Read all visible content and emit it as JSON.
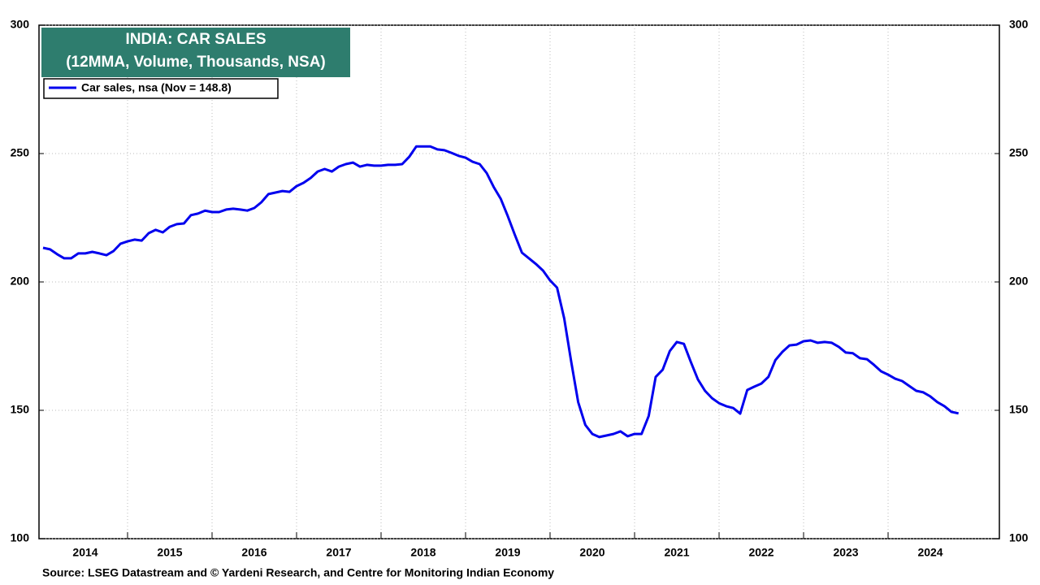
{
  "chart_data": {
    "type": "line",
    "title": "INDIA: CAR SALES",
    "subtitle": "(12MMA, Volume, Thousands, NSA)",
    "source": "Source: LSEG Datastream and © Yardeni Research, and Centre for Monitoring Indian Economy",
    "x": [
      2014.0,
      2014.083,
      2014.167,
      2014.25,
      2014.333,
      2014.417,
      2014.5,
      2014.583,
      2014.667,
      2014.75,
      2014.833,
      2014.917,
      2015.0,
      2015.083,
      2015.167,
      2015.25,
      2015.333,
      2015.417,
      2015.5,
      2015.583,
      2015.667,
      2015.75,
      2015.833,
      2015.917,
      2016.0,
      2016.083,
      2016.167,
      2016.25,
      2016.333,
      2016.417,
      2016.5,
      2016.583,
      2016.667,
      2016.75,
      2016.833,
      2016.917,
      2017.0,
      2017.083,
      2017.167,
      2017.25,
      2017.333,
      2017.417,
      2017.5,
      2017.583,
      2017.667,
      2017.75,
      2017.833,
      2017.917,
      2018.0,
      2018.083,
      2018.167,
      2018.25,
      2018.333,
      2018.417,
      2018.5,
      2018.583,
      2018.667,
      2018.75,
      2018.833,
      2018.917,
      2019.0,
      2019.083,
      2019.167,
      2019.25,
      2019.333,
      2019.417,
      2019.5,
      2019.583,
      2019.667,
      2019.75,
      2019.833,
      2019.917,
      2020.0,
      2020.083,
      2020.167,
      2020.25,
      2020.333,
      2020.417,
      2020.5,
      2020.583,
      2020.667,
      2020.75,
      2020.833,
      2020.917,
      2021.0,
      2021.083,
      2021.167,
      2021.25,
      2021.333,
      2021.417,
      2021.5,
      2021.583,
      2021.667,
      2021.75,
      2021.833,
      2021.917,
      2022.0,
      2022.083,
      2022.167,
      2022.25,
      2022.333,
      2022.417,
      2022.5,
      2022.583,
      2022.667,
      2022.75,
      2022.833,
      2022.917,
      2023.0,
      2023.083,
      2023.167,
      2023.25,
      2023.333,
      2023.417,
      2023.5,
      2023.583,
      2023.667,
      2023.75,
      2023.833,
      2023.917,
      2024.0,
      2024.083,
      2024.167,
      2024.25,
      2024.333,
      2024.417,
      2024.5,
      2024.583,
      2024.667,
      2024.75,
      2024.833
    ],
    "series": [
      {
        "name": "Car sales, nsa (Nov = 148.8)",
        "color": "#0000ee",
        "values": [
          213.3,
          212.7,
          210.8,
          209.2,
          209.2,
          211.1,
          211.1,
          211.7,
          211.1,
          210.4,
          212.0,
          214.9,
          215.8,
          216.5,
          216.1,
          219.0,
          220.3,
          219.3,
          221.5,
          222.5,
          222.8,
          226.0,
          226.6,
          227.8,
          227.2,
          227.2,
          228.2,
          228.5,
          228.2,
          227.8,
          228.8,
          231.0,
          234.2,
          234.8,
          235.4,
          235.1,
          237.3,
          238.6,
          240.5,
          243.0,
          244.0,
          243.0,
          244.9,
          245.9,
          246.5,
          244.9,
          245.6,
          245.3,
          245.3,
          245.6,
          245.6,
          245.9,
          248.7,
          252.8,
          252.8,
          252.8,
          251.6,
          251.3,
          250.3,
          249.1,
          248.4,
          246.8,
          245.9,
          242.4,
          237.0,
          232.3,
          225.6,
          218.4,
          211.4,
          209.2,
          207.0,
          204.4,
          200.6,
          197.8,
          185.8,
          169.0,
          153.2,
          144.3,
          140.8,
          139.6,
          140.2,
          140.8,
          141.8,
          139.9,
          140.8,
          140.8,
          147.8,
          163.0,
          165.8,
          173.1,
          176.6,
          175.9,
          168.7,
          162.0,
          157.6,
          154.7,
          152.8,
          151.6,
          150.9,
          148.7,
          157.9,
          159.2,
          160.4,
          163.0,
          169.6,
          172.8,
          175.3,
          175.6,
          176.9,
          177.2,
          176.3,
          176.6,
          176.3,
          174.7,
          172.5,
          172.2,
          170.3,
          169.9,
          167.7,
          165.2,
          163.9,
          162.3,
          161.4,
          159.5,
          157.6,
          157.0,
          155.4,
          153.2,
          151.6,
          149.4,
          148.8
        ]
      }
    ],
    "xlim": [
      2013.952,
      2025.317
    ],
    "xticks": [
      {
        "value": 2014,
        "label": "2014"
      },
      {
        "value": 2015,
        "label": "2015"
      },
      {
        "value": 2016,
        "label": "2016"
      },
      {
        "value": 2017,
        "label": "2017"
      },
      {
        "value": 2018,
        "label": "2018"
      },
      {
        "value": 2019,
        "label": "2019"
      },
      {
        "value": 2020,
        "label": "2020"
      },
      {
        "value": 2021,
        "label": "2021"
      },
      {
        "value": 2022,
        "label": "2022"
      },
      {
        "value": 2023,
        "label": "2023"
      },
      {
        "value": 2024,
        "label": "2024"
      }
    ],
    "ylim": [
      100,
      300
    ],
    "yticks": [
      100,
      150,
      200,
      250,
      300
    ],
    "y2lim": [
      100,
      300
    ],
    "y2ticks": [
      100,
      150,
      200,
      250,
      300
    ],
    "grid": true,
    "legend": "upper left",
    "title_color": "#2e7d6e"
  }
}
